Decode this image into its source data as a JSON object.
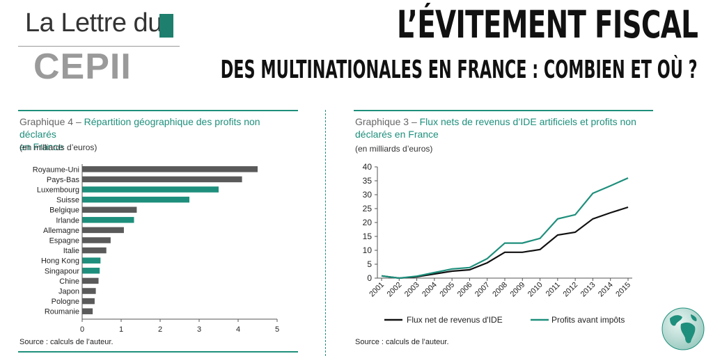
{
  "header": {
    "logo_line1": "La Lettre du",
    "logo_line2": "CEPII",
    "title_main": "L’ÉVITEMENT FISCAL",
    "title_sub": "DES MULTINATIONALES EN FRANCE : COMBIEN ET OÙ ?"
  },
  "left_chart": {
    "title_prefix": "Graphique 4 – ",
    "title_rest": "Répartition géographique des profits non déclarés",
    "title_line2": "en France",
    "unit": "(en milliards d’euros)",
    "source": "Source : calculs de l’auteur."
  },
  "right_chart": {
    "title_prefix": "Graphique 3 – ",
    "title_rest": "Flux nets de revenus d’IDE artificiels et profits non",
    "title_line2": "déclarés en France",
    "unit": "(en milliards d’euros)",
    "source": "Source : calculs de l’auteur."
  },
  "colors": {
    "teal": "#1e8f7c",
    "grey": "#5a5a5a",
    "black": "#111111"
  },
  "icons": {
    "globe": "globe-icon"
  },
  "chart_data": [
    {
      "type": "bar",
      "orientation": "horizontal",
      "categories": [
        "Royaume-Uni",
        "Pays-Bas",
        "Luxembourg",
        "Suisse",
        "Belgique",
        "Irlande",
        "Allemagne",
        "Espagne",
        "Italie",
        "Hong Kong",
        "Singapour",
        "Chine",
        "Japon",
        "Pologne",
        "Roumanie"
      ],
      "values": [
        4.5,
        4.1,
        3.5,
        2.75,
        1.4,
        1.33,
        1.07,
        0.73,
        0.62,
        0.47,
        0.45,
        0.42,
        0.35,
        0.32,
        0.27
      ],
      "highlight": [
        false,
        false,
        true,
        true,
        false,
        true,
        false,
        false,
        false,
        true,
        true,
        false,
        false,
        false,
        false
      ],
      "xlim": [
        0,
        5
      ],
      "xticks": [
        0,
        1,
        2,
        3,
        4,
        5
      ],
      "grid": false
    },
    {
      "type": "line",
      "x": [
        "2001",
        "2002",
        "2003",
        "2004",
        "2005",
        "2006",
        "2007",
        "2008",
        "2009",
        "2010",
        "2011",
        "2012",
        "2013",
        "2014",
        "2015"
      ],
      "series": [
        {
          "name": "Flux net de revenus d'IDE",
          "color": "#111111",
          "values": [
            0.8,
            0.0,
            0.5,
            1.5,
            2.5,
            3.0,
            5.5,
            9.3,
            9.3,
            10.3,
            15.5,
            16.5,
            21.3,
            23.5,
            25.5
          ]
        },
        {
          "name": "Profits avant impôts",
          "color": "#1e8f7c",
          "values": [
            0.8,
            0.0,
            0.7,
            2.0,
            3.3,
            3.8,
            7.0,
            12.6,
            12.6,
            14.3,
            21.3,
            22.8,
            30.5,
            33.2,
            36.0
          ]
        }
      ],
      "ylim": [
        0,
        40
      ],
      "yticks": [
        0,
        5,
        10,
        15,
        20,
        25,
        30,
        35,
        40
      ],
      "grid": false,
      "legend_position": "bottom"
    }
  ]
}
